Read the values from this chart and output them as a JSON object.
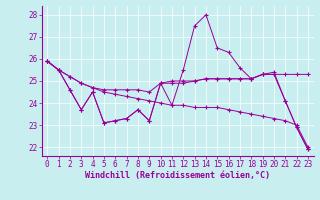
{
  "xlabel": "Windchill (Refroidissement éolien,°C)",
  "bg_color": "#c8eef0",
  "line_color": "#990099",
  "grid_color": "#ffffff",
  "xlim": [
    -0.5,
    23.5
  ],
  "ylim": [
    21.6,
    28.4
  ],
  "yticks": [
    22,
    23,
    24,
    25,
    26,
    27,
    28
  ],
  "xticks": [
    0,
    1,
    2,
    3,
    4,
    5,
    6,
    7,
    8,
    9,
    10,
    11,
    12,
    13,
    14,
    15,
    16,
    17,
    18,
    19,
    20,
    21,
    22,
    23
  ],
  "series": [
    [
      25.9,
      25.5,
      24.6,
      23.7,
      24.5,
      23.1,
      23.2,
      23.3,
      23.7,
      23.2,
      24.9,
      23.9,
      25.5,
      27.5,
      28.0,
      26.5,
      26.3,
      25.6,
      25.1,
      25.3,
      25.4,
      24.1,
      22.9,
      21.9
    ],
    [
      25.9,
      25.5,
      25.2,
      24.9,
      24.7,
      24.6,
      24.6,
      24.6,
      24.6,
      24.5,
      24.9,
      24.9,
      24.9,
      25.0,
      25.1,
      25.1,
      25.1,
      25.1,
      25.1,
      25.3,
      25.3,
      25.3,
      25.3,
      25.3
    ],
    [
      25.9,
      25.5,
      25.2,
      24.9,
      24.7,
      24.5,
      24.4,
      24.3,
      24.2,
      24.1,
      24.0,
      23.9,
      23.9,
      23.8,
      23.8,
      23.8,
      23.7,
      23.6,
      23.5,
      23.4,
      23.3,
      23.2,
      23.0,
      22.0
    ],
    [
      25.9,
      25.5,
      24.6,
      23.7,
      24.5,
      23.1,
      23.2,
      23.3,
      23.7,
      23.2,
      24.9,
      25.0,
      25.0,
      25.0,
      25.1,
      25.1,
      25.1,
      25.1,
      25.1,
      25.3,
      25.3,
      24.1,
      22.9,
      21.9
    ]
  ],
  "xlabel_fontsize": 6,
  "tick_fontsize": 5.5
}
